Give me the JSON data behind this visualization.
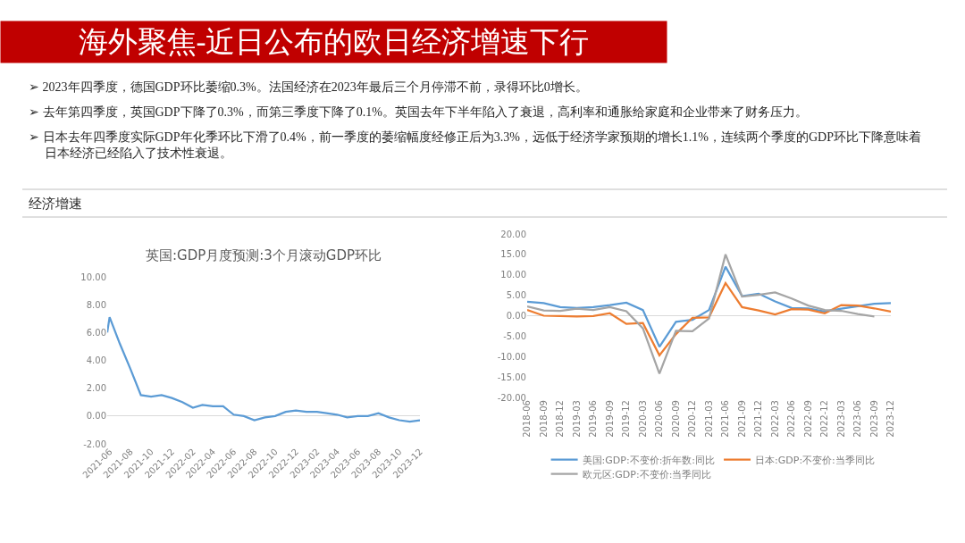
{
  "chart_data": [
    {
      "type": "other",
      "title": "海外聚焦-近日公布的欧日经济增速下行",
      "subtitle": "经济增速",
      "annotations": [
        "➢ 2023年四季度，德国GDP环比萎缩0.3%。法国经济在2023年最后三个月停滞不前，录得环比0增长。",
        "➢ 去年第四季度，英国GDP下降了0.3%，而第三季度下降了0.1%。英国去年下半年陷入了衰退，高利率和通胀给家庭和企业带来了财务压力。",
        "➢ 日本去年四季度实际GDP年化季环比下滑了0.4%，前一季度的萎缩幅度经修正后为3.3%，远低于经济学家预期的增长1.1%，连续两个季度的GDP环比下降意味着日本经济已经陷入了技术性衰退。"
      ]
    },
    {
      "type": "line",
      "title": "英国:GDP月度预测:3个月滚动GDP环比",
      "color": "#5b9bd5",
      "x": [
        "2021-05-25",
        "2021-06-01",
        "2021-07-01",
        "2021-08-01",
        "2021-09-01",
        "2021-10-01",
        "2021-11-01",
        "2021-12-01",
        "2022-01-01",
        "2022-02-01",
        "2022-03-01",
        "2022-04-01",
        "2022-05-01",
        "2022-06-01",
        "2022-07-01",
        "2022-08-01",
        "2022-09-01",
        "2022-10-01",
        "2022-11-01",
        "2022-12-01",
        "2023-01-01",
        "2023-02-01",
        "2023-03-01",
        "2023-04-01",
        "2023-05-01",
        "2023-06-01",
        "2023-07-01",
        "2023-08-01",
        "2023-09-01",
        "2023-10-01",
        "2023-11-01",
        "2023-12-01"
      ],
      "values": [
        6.0,
        7.1,
        5.2,
        3.4,
        1.5,
        1.4,
        1.5,
        1.3,
        1.0,
        0.6,
        0.8,
        0.7,
        0.7,
        0.1,
        0.0,
        -0.3,
        -0.1,
        0.0,
        0.3,
        0.4,
        0.3,
        0.3,
        0.2,
        0.1,
        -0.1,
        0.0,
        0.0,
        0.2,
        -0.1,
        -0.3,
        -0.4,
        -0.3
      ],
      "xlim": [
        "2021-05-25",
        "2023-12-01"
      ],
      "xticks": [
        "2021-06",
        "2021-08",
        "2021-10",
        "2021-12",
        "2022-02",
        "2022-04",
        "2022-06",
        "2022-08",
        "2022-10",
        "2022-12",
        "2023-02",
        "2023-04",
        "2023-06",
        "2023-08",
        "2023-10",
        "2023-12"
      ],
      "ylim": [
        -2,
        10
      ],
      "yticks": [
        {
          "value": -2,
          "label": "-2.00"
        },
        {
          "value": 0,
          "label": "0.00"
        },
        {
          "value": 2,
          "label": "2.00"
        },
        {
          "value": 4,
          "label": "4.00"
        },
        {
          "value": 6,
          "label": "6.00"
        },
        {
          "value": 8,
          "label": "8.00"
        },
        {
          "value": 10,
          "label": "10.00"
        }
      ]
    },
    {
      "type": "line",
      "legend": "bottom",
      "categories": [
        "2018-06",
        "2018-09",
        "2018-12",
        "2019-03",
        "2019-06",
        "2019-09",
        "2019-12",
        "2020-03",
        "2020-06",
        "2020-09",
        "2020-12",
        "2021-03",
        "2021-06",
        "2021-09",
        "2021-12",
        "2022-03",
        "2022-06",
        "2022-09",
        "2022-12",
        "2023-03",
        "2023-06",
        "2023-09",
        "2023-12"
      ],
      "series": [
        {
          "name": "美国:GDP:不变价:折年数:同比",
          "color": "#5b9bd5",
          "values": [
            3.4,
            3.1,
            2.1,
            1.9,
            2.1,
            2.6,
            3.2,
            1.4,
            -7.6,
            -1.5,
            -1.0,
            1.4,
            12.0,
            4.8,
            5.4,
            3.5,
            1.9,
            1.8,
            1.0,
            1.7,
            2.3,
            2.9,
            3.1
          ]
        },
        {
          "name": "日本:GDP:不变价:当季同比",
          "color": "#ed7d31",
          "values": [
            1.4,
            0.0,
            -0.1,
            -0.2,
            -0.1,
            0.6,
            -2.0,
            -1.8,
            -9.7,
            -4.5,
            -0.5,
            -0.4,
            8.0,
            2.1,
            1.3,
            0.3,
            1.6,
            1.5,
            0.6,
            2.6,
            2.5,
            1.8,
            1.0
          ]
        },
        {
          "name": "欧元区:GDP:不变价:当季同比",
          "color": "#a5a5a5",
          "values": [
            2.3,
            1.3,
            1.2,
            1.7,
            1.4,
            2.1,
            1.1,
            -3.1,
            -14.2,
            -3.7,
            -3.8,
            -0.7,
            15.0,
            4.7,
            5.1,
            5.7,
            4.2,
            2.5,
            1.4,
            1.2,
            0.4,
            -0.2,
            null
          ]
        }
      ],
      "ylim": [
        -20,
        20
      ],
      "yticks": [
        {
          "value": -20,
          "label": "-20.00"
        },
        {
          "value": -15,
          "label": "-15.00"
        },
        {
          "value": -10,
          "label": "-10.00"
        },
        {
          "value": -5,
          "label": "-5.00"
        },
        {
          "value": 0,
          "label": "0.00"
        },
        {
          "value": 5,
          "label": "5.00"
        },
        {
          "value": 10,
          "label": "10.00"
        },
        {
          "value": 15,
          "label": "15.00"
        },
        {
          "value": 20,
          "label": "20.00"
        }
      ]
    }
  ]
}
